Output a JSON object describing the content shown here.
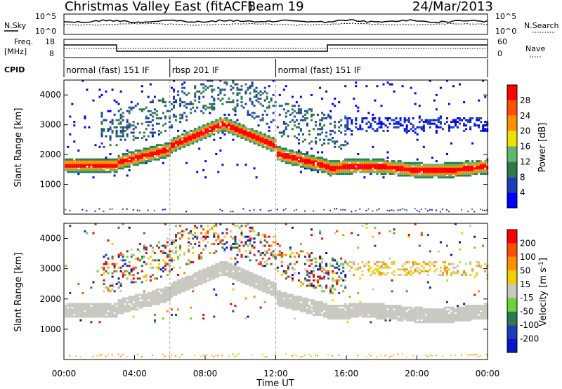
{
  "header": {
    "station": "Christmas Valley East (fitACF)",
    "beam": "Beam 19",
    "date": "24/Mar/2013"
  },
  "panels": {
    "nsky_label": "N.Sky",
    "nsearch_label": "N.Search",
    "freq_label_1": "Freq.",
    "freq_label_2": "[MHz]",
    "nave_label": "Nave",
    "cpid_label": "CPID",
    "nsky_ticks": [
      "10^5",
      "10^0"
    ],
    "nsearch_ticks": [
      "10^5",
      "10^0"
    ],
    "freq_ticks": [
      "18",
      "8"
    ],
    "nave_ticks": [
      "60",
      "0"
    ],
    "cpid_segments": [
      {
        "label": "normal (fast) 151 IF",
        "start_h": 0,
        "end_h": 6
      },
      {
        "label": "rbsp 201 IF",
        "start_h": 6,
        "end_h": 12
      },
      {
        "label": "normal (fast) 151 IF",
        "start_h": 12,
        "end_h": 24
      }
    ]
  },
  "chart_data": [
    {
      "type": "heatmap",
      "name": "power",
      "ylabel": "Slant Range [km]",
      "ylim": [
        0,
        4500
      ],
      "yticks": [
        1000,
        2000,
        3000,
        4000
      ],
      "colorbar_label": "Power [dB]",
      "colorbar_ticks": [
        4,
        8,
        12,
        16,
        20,
        24,
        28
      ],
      "colorbar_range": [
        0,
        30
      ],
      "colorbar_colors": [
        "#0000ff",
        "#1e3cb4",
        "#2e7a4a",
        "#5fb86e",
        "#f0e000",
        "#ff9000",
        "#ff5000",
        "#ff0000"
      ]
    },
    {
      "type": "heatmap",
      "name": "velocity",
      "xlabel": "Time UT",
      "ylabel": "Slant Range [km]",
      "ylim": [
        0,
        4500
      ],
      "yticks": [
        1000,
        2000,
        3000,
        4000
      ],
      "xticks": [
        "00:00",
        "04:00",
        "08:00",
        "12:00",
        "16:00",
        "20:00",
        "00:00"
      ],
      "xlim_hours": [
        0,
        24
      ],
      "colorbar_label": "Velocity [m s^-1]",
      "colorbar_ticks": [
        "200",
        "100",
        "50",
        "15",
        "-15",
        "-50",
        "-100",
        "-200"
      ],
      "colorbar_colors": [
        "#0a14c8",
        "#1e3cb4",
        "#2e7a4a",
        "#6ad23c",
        "#c8c8c0",
        "#f0d000",
        "#ff9000",
        "#ff5000",
        "#ff0000"
      ]
    }
  ]
}
